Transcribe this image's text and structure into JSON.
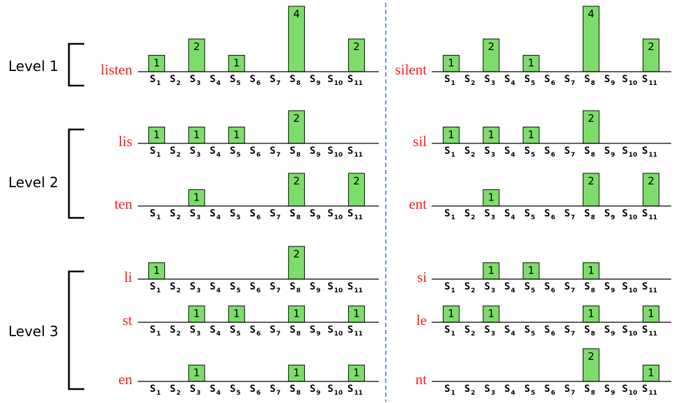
{
  "levels": [
    {
      "label": "Level 1"
    },
    {
      "label": "Level 2"
    },
    {
      "label": "Level 3"
    }
  ],
  "slot_labels": [
    "S1",
    "S2",
    "S3",
    "S4",
    "S5",
    "S6",
    "S7",
    "S8",
    "S9",
    "S10",
    "S11"
  ],
  "colors": {
    "bar": "#7ddd6a",
    "word": "#ff1a1a",
    "divider": "#2b54d8"
  },
  "chart_data": {
    "type": "bar",
    "categories": [
      "S1",
      "S2",
      "S3",
      "S4",
      "S5",
      "S6",
      "S7",
      "S8",
      "S9",
      "S10",
      "S11"
    ],
    "panels": [
      {
        "word": "listen",
        "level": 1,
        "column": "left",
        "values": [
          1,
          0,
          2,
          0,
          1,
          0,
          0,
          4,
          0,
          0,
          2
        ]
      },
      {
        "word": "silent",
        "level": 1,
        "column": "right",
        "values": [
          1,
          0,
          2,
          0,
          1,
          0,
          0,
          4,
          0,
          0,
          2
        ]
      },
      {
        "word": "lis",
        "level": 2,
        "column": "left",
        "values": [
          1,
          0,
          1,
          0,
          1,
          0,
          0,
          2,
          0,
          0,
          0
        ]
      },
      {
        "word": "sil",
        "level": 2,
        "column": "right",
        "values": [
          1,
          0,
          1,
          0,
          1,
          0,
          0,
          2,
          0,
          0,
          0
        ]
      },
      {
        "word": "ten",
        "level": 2,
        "column": "left",
        "values": [
          0,
          0,
          1,
          0,
          0,
          0,
          0,
          2,
          0,
          0,
          2
        ]
      },
      {
        "word": "ent",
        "level": 2,
        "column": "right",
        "values": [
          0,
          0,
          1,
          0,
          0,
          0,
          0,
          2,
          0,
          0,
          2
        ]
      },
      {
        "word": "li",
        "level": 3,
        "column": "left",
        "values": [
          1,
          0,
          0,
          0,
          0,
          0,
          0,
          2,
          0,
          0,
          0
        ]
      },
      {
        "word": "si",
        "level": 3,
        "column": "right",
        "values": [
          0,
          0,
          1,
          0,
          1,
          0,
          0,
          1,
          0,
          0,
          0
        ]
      },
      {
        "word": "st",
        "level": 3,
        "column": "left",
        "values": [
          0,
          0,
          1,
          0,
          1,
          0,
          0,
          1,
          0,
          0,
          1
        ]
      },
      {
        "word": "le",
        "level": 3,
        "column": "right",
        "values": [
          1,
          0,
          1,
          0,
          0,
          0,
          0,
          1,
          0,
          0,
          1
        ]
      },
      {
        "word": "en",
        "level": 3,
        "column": "left",
        "values": [
          0,
          0,
          1,
          0,
          0,
          0,
          0,
          1,
          0,
          0,
          1
        ]
      },
      {
        "word": "nt",
        "level": 3,
        "column": "right",
        "values": [
          0,
          0,
          0,
          0,
          0,
          0,
          0,
          2,
          0,
          0,
          1
        ]
      }
    ]
  }
}
